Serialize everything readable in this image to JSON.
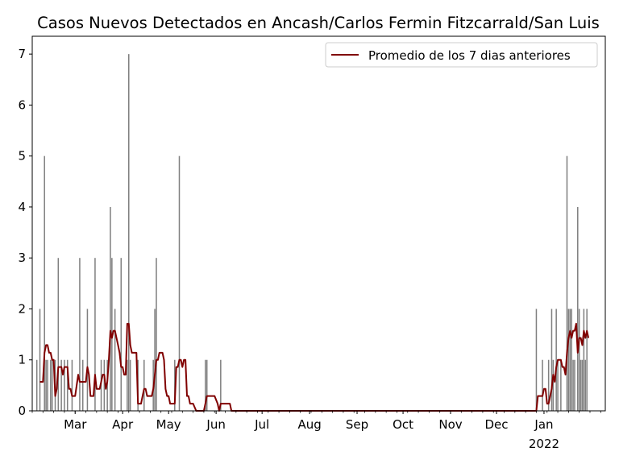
{
  "chart_data": {
    "type": "bar",
    "title": "Casos Nuevos Detectados en Ancash/Carlos Fermin Fitzcarrald/San Luis",
    "xlabel": "",
    "ylabel": "",
    "ylim": [
      0,
      7.35
    ],
    "yticks": [
      0,
      1,
      2,
      3,
      4,
      5,
      6,
      7
    ],
    "xlim": [
      "2021-02-01",
      "2022-02-10"
    ],
    "xticks": [
      {
        "date": "2021-03-01",
        "label": "Mar"
      },
      {
        "date": "2021-04-01",
        "label": "Apr"
      },
      {
        "date": "2021-05-01",
        "label": "May"
      },
      {
        "date": "2021-06-01",
        "label": "Jun"
      },
      {
        "date": "2021-07-01",
        "label": "Jul"
      },
      {
        "date": "2021-08-01",
        "label": "Aug"
      },
      {
        "date": "2021-09-01",
        "label": "Sep"
      },
      {
        "date": "2021-10-01",
        "label": "Oct"
      },
      {
        "date": "2021-11-01",
        "label": "Nov"
      },
      {
        "date": "2021-12-01",
        "label": "Dec"
      },
      {
        "date": "2022-01-01",
        "label": "Jan",
        "sublabel": "2022"
      }
    ],
    "bar_color": "#808080",
    "line_color": "#800000",
    "grid": false,
    "legend": {
      "position": "upper-right",
      "entries": [
        "Promedio de los 7 dias anteriores"
      ]
    },
    "series": [
      {
        "kind": "bar",
        "points": [
          [
            "2021-02-04",
            1
          ],
          [
            "2021-02-06",
            2
          ],
          [
            "2021-02-09",
            5
          ],
          [
            "2021-02-10",
            1
          ],
          [
            "2021-02-11",
            1
          ],
          [
            "2021-02-13",
            1
          ],
          [
            "2021-02-14",
            1
          ],
          [
            "2021-02-16",
            1
          ],
          [
            "2021-02-18",
            3
          ],
          [
            "2021-02-20",
            1
          ],
          [
            "2021-02-22",
            1
          ],
          [
            "2021-02-24",
            1
          ],
          [
            "2021-02-27",
            1
          ],
          [
            "2021-03-04",
            3
          ],
          [
            "2021-03-06",
            1
          ],
          [
            "2021-03-09",
            2
          ],
          [
            "2021-03-14",
            3
          ],
          [
            "2021-03-18",
            1
          ],
          [
            "2021-03-20",
            1
          ],
          [
            "2021-03-22",
            1
          ],
          [
            "2021-03-24",
            4
          ],
          [
            "2021-03-25",
            3
          ],
          [
            "2021-03-27",
            2
          ],
          [
            "2021-03-31",
            3
          ],
          [
            "2021-04-04",
            1
          ],
          [
            "2021-04-05",
            7
          ],
          [
            "2021-04-06",
            1
          ],
          [
            "2021-04-11",
            1
          ],
          [
            "2021-04-15",
            1
          ],
          [
            "2021-04-21",
            1
          ],
          [
            "2021-04-22",
            2
          ],
          [
            "2021-04-23",
            3
          ],
          [
            "2021-05-05",
            1
          ],
          [
            "2021-05-08",
            5
          ],
          [
            "2021-05-25",
            1
          ],
          [
            "2021-05-26",
            1
          ],
          [
            "2021-06-04",
            1
          ],
          [
            "2021-12-27",
            2
          ],
          [
            "2021-12-31",
            1
          ],
          [
            "2022-01-04",
            1
          ],
          [
            "2022-01-06",
            2
          ],
          [
            "2022-01-07",
            1
          ],
          [
            "2022-01-09",
            2
          ],
          [
            "2022-01-10",
            1
          ],
          [
            "2022-01-12",
            1
          ],
          [
            "2022-01-16",
            5
          ],
          [
            "2022-01-17",
            2
          ],
          [
            "2022-01-18",
            2
          ],
          [
            "2022-01-19",
            2
          ],
          [
            "2022-01-20",
            1
          ],
          [
            "2022-01-21",
            1
          ],
          [
            "2022-01-23",
            4
          ],
          [
            "2022-01-24",
            2
          ],
          [
            "2022-01-25",
            1
          ],
          [
            "2022-01-26",
            1
          ],
          [
            "2022-01-27",
            2
          ],
          [
            "2022-01-28",
            1
          ],
          [
            "2022-01-29",
            2
          ]
        ]
      },
      {
        "kind": "line",
        "name": "Promedio de los 7 dias anteriores",
        "points": [
          [
            "2021-02-06",
            0.57
          ],
          [
            "2021-02-08",
            0.57
          ],
          [
            "2021-02-09",
            1.14
          ],
          [
            "2021-02-10",
            1.29
          ],
          [
            "2021-02-11",
            1.29
          ],
          [
            "2021-02-12",
            1.14
          ],
          [
            "2021-02-13",
            1.14
          ],
          [
            "2021-02-14",
            1.0
          ],
          [
            "2021-02-15",
            1.0
          ],
          [
            "2021-02-16",
            0.29
          ],
          [
            "2021-02-17",
            0.43
          ],
          [
            "2021-02-18",
            0.86
          ],
          [
            "2021-02-19",
            0.86
          ],
          [
            "2021-02-20",
            0.86
          ],
          [
            "2021-02-21",
            0.71
          ],
          [
            "2021-02-22",
            0.86
          ],
          [
            "2021-02-23",
            0.86
          ],
          [
            "2021-02-24",
            0.86
          ],
          [
            "2021-02-25",
            0.43
          ],
          [
            "2021-02-26",
            0.43
          ],
          [
            "2021-02-27",
            0.29
          ],
          [
            "2021-03-01",
            0.29
          ],
          [
            "2021-03-03",
            0.71
          ],
          [
            "2021-03-04",
            0.57
          ],
          [
            "2021-03-05",
            0.57
          ],
          [
            "2021-03-07",
            0.57
          ],
          [
            "2021-03-08",
            0.57
          ],
          [
            "2021-03-09",
            0.86
          ],
          [
            "2021-03-10",
            0.71
          ],
          [
            "2021-03-11",
            0.29
          ],
          [
            "2021-03-12",
            0.29
          ],
          [
            "2021-03-13",
            0.29
          ],
          [
            "2021-03-14",
            0.71
          ],
          [
            "2021-03-15",
            0.43
          ],
          [
            "2021-03-16",
            0.43
          ],
          [
            "2021-03-17",
            0.43
          ],
          [
            "2021-03-18",
            0.57
          ],
          [
            "2021-03-19",
            0.71
          ],
          [
            "2021-03-20",
            0.71
          ],
          [
            "2021-03-21",
            0.43
          ],
          [
            "2021-03-22",
            0.57
          ],
          [
            "2021-03-23",
            1.0
          ],
          [
            "2021-03-24",
            1.57
          ],
          [
            "2021-03-25",
            1.43
          ],
          [
            "2021-03-26",
            1.57
          ],
          [
            "2021-03-27",
            1.57
          ],
          [
            "2021-03-28",
            1.43
          ],
          [
            "2021-03-29",
            1.29
          ],
          [
            "2021-03-30",
            1.14
          ],
          [
            "2021-03-31",
            0.86
          ],
          [
            "2021-04-01",
            0.86
          ],
          [
            "2021-04-02",
            0.71
          ],
          [
            "2021-04-03",
            0.71
          ],
          [
            "2021-04-04",
            1.71
          ],
          [
            "2021-04-05",
            1.71
          ],
          [
            "2021-04-06",
            1.29
          ],
          [
            "2021-04-07",
            1.14
          ],
          [
            "2021-04-08",
            1.14
          ],
          [
            "2021-04-10",
            1.14
          ],
          [
            "2021-04-11",
            0.14
          ],
          [
            "2021-04-12",
            0.14
          ],
          [
            "2021-04-13",
            0.14
          ],
          [
            "2021-04-14",
            0.29
          ],
          [
            "2021-04-15",
            0.43
          ],
          [
            "2021-04-16",
            0.43
          ],
          [
            "2021-04-17",
            0.29
          ],
          [
            "2021-04-19",
            0.29
          ],
          [
            "2021-04-20",
            0.29
          ],
          [
            "2021-04-21",
            0.43
          ],
          [
            "2021-04-22",
            0.71
          ],
          [
            "2021-04-23",
            1.0
          ],
          [
            "2021-04-24",
            1.0
          ],
          [
            "2021-04-25",
            1.14
          ],
          [
            "2021-04-27",
            1.14
          ],
          [
            "2021-04-28",
            1.0
          ],
          [
            "2021-04-29",
            0.43
          ],
          [
            "2021-04-30",
            0.29
          ],
          [
            "2021-05-01",
            0.29
          ],
          [
            "2021-05-02",
            0.14
          ],
          [
            "2021-05-04",
            0.14
          ],
          [
            "2021-05-05",
            0.14
          ],
          [
            "2021-05-06",
            0.86
          ],
          [
            "2021-05-07",
            0.86
          ],
          [
            "2021-05-08",
            1.0
          ],
          [
            "2021-05-09",
            1.0
          ],
          [
            "2021-05-10",
            0.86
          ],
          [
            "2021-05-11",
            1.0
          ],
          [
            "2021-05-12",
            1.0
          ],
          [
            "2021-05-13",
            0.29
          ],
          [
            "2021-05-14",
            0.29
          ],
          [
            "2021-05-15",
            0.14
          ],
          [
            "2021-05-17",
            0.14
          ],
          [
            "2021-05-19",
            0.0
          ],
          [
            "2021-05-24",
            0.0
          ],
          [
            "2021-05-25",
            0.14
          ],
          [
            "2021-05-26",
            0.29
          ],
          [
            "2021-05-31",
            0.29
          ],
          [
            "2021-06-02",
            0.14
          ],
          [
            "2021-06-03",
            0.0
          ],
          [
            "2021-06-04",
            0.14
          ],
          [
            "2021-06-10",
            0.14
          ],
          [
            "2021-06-11",
            0.0
          ],
          [
            "2021-12-27",
            0.0
          ],
          [
            "2021-12-28",
            0.29
          ],
          [
            "2021-12-31",
            0.29
          ],
          [
            "2022-01-01",
            0.43
          ],
          [
            "2022-01-02",
            0.43
          ],
          [
            "2022-01-03",
            0.14
          ],
          [
            "2022-01-04",
            0.14
          ],
          [
            "2022-01-05",
            0.29
          ],
          [
            "2022-01-06",
            0.43
          ],
          [
            "2022-01-07",
            0.71
          ],
          [
            "2022-01-08",
            0.57
          ],
          [
            "2022-01-09",
            0.86
          ],
          [
            "2022-01-10",
            1.0
          ],
          [
            "2022-01-12",
            1.0
          ],
          [
            "2022-01-13",
            0.86
          ],
          [
            "2022-01-14",
            0.86
          ],
          [
            "2022-01-15",
            0.71
          ],
          [
            "2022-01-16",
            1.14
          ],
          [
            "2022-01-17",
            1.43
          ],
          [
            "2022-01-18",
            1.57
          ],
          [
            "2022-01-19",
            1.43
          ],
          [
            "2022-01-20",
            1.57
          ],
          [
            "2022-01-21",
            1.57
          ],
          [
            "2022-01-22",
            1.71
          ],
          [
            "2022-01-23",
            1.14
          ],
          [
            "2022-01-24",
            1.43
          ],
          [
            "2022-01-25",
            1.43
          ],
          [
            "2022-01-26",
            1.29
          ],
          [
            "2022-01-27",
            1.57
          ],
          [
            "2022-01-28",
            1.43
          ],
          [
            "2022-01-29",
            1.57
          ],
          [
            "2022-01-30",
            1.43
          ]
        ]
      }
    ]
  }
}
